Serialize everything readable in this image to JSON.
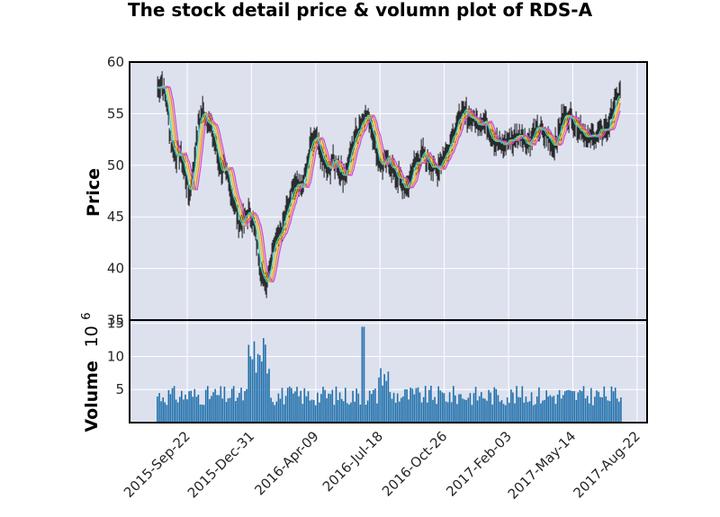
{
  "chart_data": [
    {
      "panel": "price",
      "type": "candlestick",
      "title": "The stock detail price & volumn plot of RDS-A",
      "ylabel": "Price",
      "ylim": [
        35,
        60
      ],
      "yticks": [
        "35",
        "40",
        "45",
        "50",
        "55",
        "60"
      ],
      "x_dates": [
        "2015-Sep-22",
        "2015-Dec-31",
        "2016-Apr-09",
        "2016-Jul-18",
        "2016-Oct-26",
        "2017-Feb-03",
        "2017-May-14",
        "2017-Aug-22"
      ],
      "xlim": [
        "2015-Jul-31",
        "2017-Aug-22"
      ],
      "grid": true,
      "ohlc_color": "#1a1a1a",
      "close_series": {
        "dates": [
          "2015-Aug-07",
          "2015-Aug-14",
          "2015-Aug-21",
          "2015-Aug-28",
          "2015-Sep-04",
          "2015-Sep-11",
          "2015-Sep-18",
          "2015-Sep-25",
          "2015-Oct-02",
          "2015-Oct-09",
          "2015-Oct-16",
          "2015-Oct-23",
          "2015-Oct-30",
          "2015-Nov-06",
          "2015-Nov-13",
          "2015-Nov-20",
          "2015-Nov-27",
          "2015-Dec-04",
          "2015-Dec-11",
          "2015-Dec-18",
          "2015-Dec-25",
          "2016-Jan-01",
          "2016-Jan-08",
          "2016-Jan-15",
          "2016-Jan-22",
          "2016-Jan-29",
          "2016-Feb-05",
          "2016-Feb-12",
          "2016-Feb-19",
          "2016-Feb-26",
          "2016-Mar-04",
          "2016-Mar-11",
          "2016-Mar-18",
          "2016-Mar-25",
          "2016-Apr-01",
          "2016-Apr-08",
          "2016-Apr-15",
          "2016-Apr-22",
          "2016-Apr-29",
          "2016-May-06",
          "2016-May-13",
          "2016-May-20",
          "2016-May-27",
          "2016-Jun-03",
          "2016-Jun-10",
          "2016-Jun-17",
          "2016-Jun-24",
          "2016-Jul-01",
          "2016-Jul-08",
          "2016-Jul-15",
          "2016-Jul-22",
          "2016-Jul-29",
          "2016-Aug-05",
          "2016-Aug-12",
          "2016-Aug-19",
          "2016-Aug-26",
          "2016-Sep-02",
          "2016-Sep-09",
          "2016-Sep-16",
          "2016-Sep-23",
          "2016-Sep-30",
          "2016-Oct-07",
          "2016-Oct-14",
          "2016-Oct-21",
          "2016-Oct-28",
          "2016-Nov-04",
          "2016-Nov-11",
          "2016-Nov-18",
          "2016-Nov-25",
          "2016-Dec-02",
          "2016-Dec-09",
          "2016-Dec-16",
          "2016-Dec-23",
          "2016-Dec-30",
          "2017-Jan-06",
          "2017-Jan-13",
          "2017-Jan-20",
          "2017-Jan-27",
          "2017-Feb-03",
          "2017-Feb-10",
          "2017-Feb-17",
          "2017-Feb-24",
          "2017-Mar-03",
          "2017-Mar-10",
          "2017-Mar-17",
          "2017-Mar-24",
          "2017-Mar-31",
          "2017-Apr-07",
          "2017-Apr-14",
          "2017-Apr-21",
          "2017-Apr-28",
          "2017-May-05",
          "2017-May-12",
          "2017-May-19",
          "2017-May-26",
          "2017-Jun-02",
          "2017-Jun-09",
          "2017-Jun-16",
          "2017-Jun-23",
          "2017-Jun-30",
          "2017-Jul-07",
          "2017-Jul-14",
          "2017-Jul-21",
          "2017-Jul-28"
        ],
        "values": [
          57.5,
          58.0,
          56.0,
          52.0,
          51.0,
          51.0,
          49.5,
          47.0,
          50.0,
          54.0,
          55.2,
          54.5,
          53.5,
          51.5,
          49.5,
          49.5,
          48.0,
          46.5,
          44.5,
          44.5,
          45.5,
          45.0,
          42.5,
          39.5,
          38.5,
          40.5,
          43.0,
          43.5,
          44.5,
          46.0,
          48.0,
          48.5,
          47.5,
          49.5,
          52.0,
          52.5,
          51.5,
          50.0,
          49.5,
          50.5,
          50.0,
          49.0,
          49.5,
          51.5,
          53.0,
          54.0,
          55.0,
          54.5,
          53.0,
          50.5,
          50.0,
          50.5,
          50.0,
          49.0,
          48.5,
          47.5,
          48.5,
          50.0,
          50.5,
          51.0,
          50.5,
          50.0,
          49.5,
          50.5,
          51.0,
          52.5,
          53.5,
          54.5,
          55.0,
          55.0,
          54.5,
          54.0,
          54.5,
          54.0,
          53.0,
          52.5,
          52.0,
          52.0,
          52.5,
          52.5,
          53.0,
          53.0,
          52.0,
          52.5,
          53.5,
          53.5,
          53.0,
          52.5,
          52.0,
          53.0,
          54.5,
          55.0,
          54.5,
          54.0,
          53.5,
          53.0,
          52.5,
          53.0,
          53.0,
          53.5,
          53.5,
          55.0,
          56.5,
          57.0
        ]
      },
      "moving_averages": [
        {
          "color": "#e6c229",
          "lag": 1
        },
        {
          "color": "#f0812e",
          "lag": 2
        },
        {
          "color": "#c94fe0",
          "lag": 3
        },
        {
          "color": "#3fd0c9",
          "lag": 0
        }
      ]
    },
    {
      "panel": "volume",
      "type": "bar",
      "ylabel": "Volume",
      "ylabel_suffix": "10",
      "ylabel_exp": "6",
      "ylim": [
        0,
        15.5
      ],
      "yticks": [
        "5",
        "10",
        "15"
      ],
      "bar_color": "#1f6fab",
      "grid": true,
      "notable_values": {
        "max": 14.5,
        "typical": 3.5
      }
    }
  ]
}
